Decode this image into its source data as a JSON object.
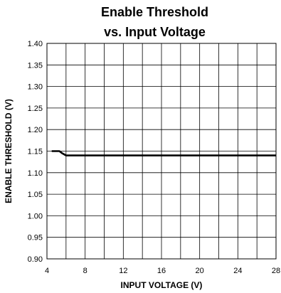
{
  "chart_data": {
    "type": "line",
    "title_line1": "Enable Threshold",
    "title_line2": "vs. Input Voltage",
    "xlabel": "INPUT VOLTAGE (V)",
    "ylabel": "ENABLE THRESHOLD (V)",
    "xlim": [
      4,
      28
    ],
    "ylim": [
      0.9,
      1.4
    ],
    "x_ticks": [
      4,
      8,
      12,
      16,
      20,
      24,
      28
    ],
    "y_ticks": [
      "0.90",
      "0.95",
      "1.00",
      "1.05",
      "1.10",
      "1.15",
      "1.20",
      "1.25",
      "1.30",
      "1.35",
      "1.40"
    ],
    "x_grid_step": 2,
    "grid": true,
    "series": [
      {
        "x": [
          4.5,
          5.0,
          5.3,
          5.6,
          6.0,
          8,
          12,
          16,
          20,
          24,
          28
        ],
        "y": [
          1.15,
          1.15,
          1.15,
          1.145,
          1.14,
          1.14,
          1.14,
          1.14,
          1.14,
          1.14,
          1.14
        ]
      }
    ]
  }
}
